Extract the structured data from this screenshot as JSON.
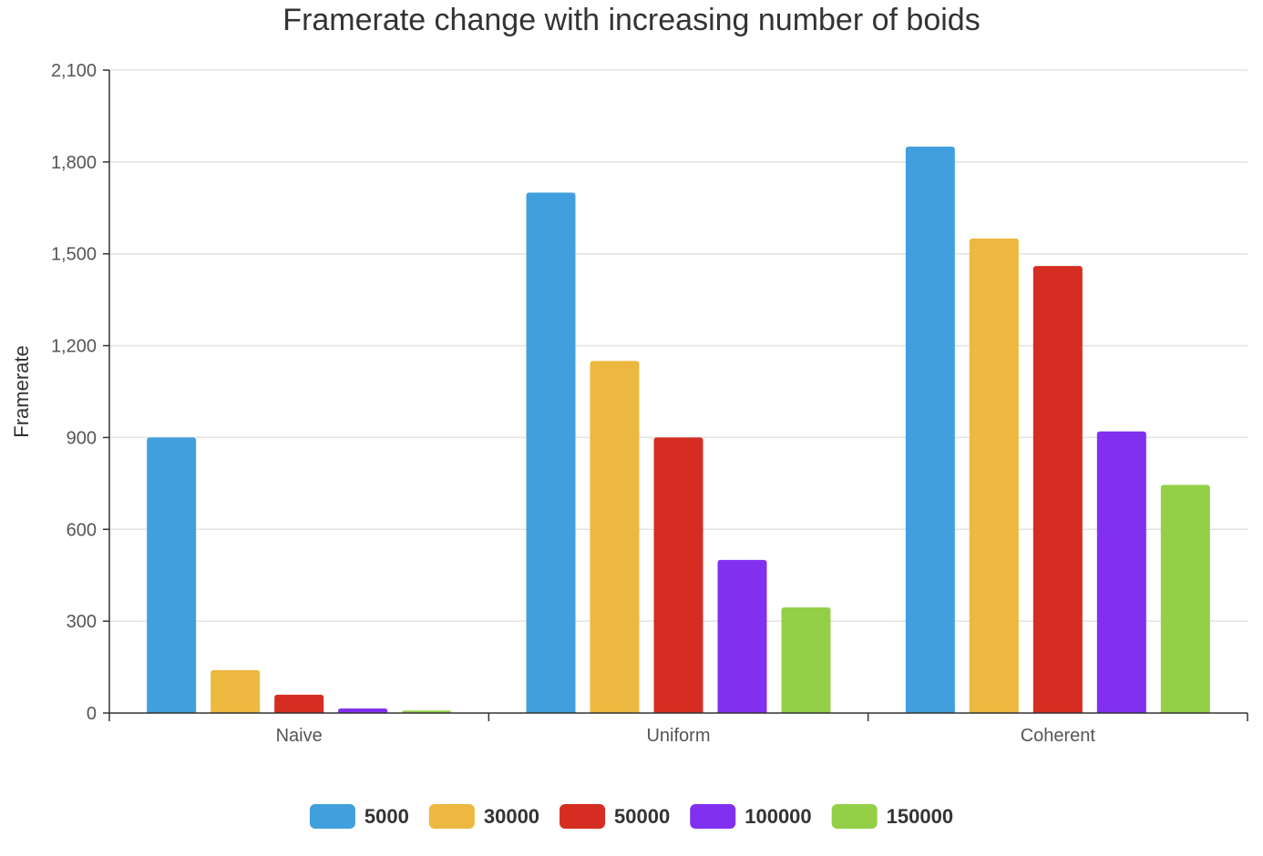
{
  "chart_data": {
    "type": "bar",
    "title": "Framerate change with increasing number of boids",
    "xlabel": "",
    "ylabel": "Framerate",
    "categories": [
      "Naive",
      "Uniform",
      "Coherent"
    ],
    "ylim": [
      0,
      2100
    ],
    "yticks": [
      0,
      300,
      600,
      900,
      1200,
      1500,
      1800,
      2100
    ],
    "ytick_labels": [
      "0",
      "300",
      "600",
      "900",
      "1,200",
      "1,500",
      "1,800",
      "2,100"
    ],
    "grid": true,
    "legend_position": "bottom",
    "series": [
      {
        "name": "5000",
        "color": "#429fdd",
        "values": [
          900,
          1700,
          1850
        ]
      },
      {
        "name": "30000",
        "color": "#ecb83f",
        "values": [
          140,
          1150,
          1550
        ]
      },
      {
        "name": "50000",
        "color": "#d52d21",
        "values": [
          60,
          900,
          1460
        ]
      },
      {
        "name": "100000",
        "color": "#8130f0",
        "values": [
          15,
          500,
          920
        ]
      },
      {
        "name": "150000",
        "color": "#93cf47",
        "values": [
          8,
          345,
          745
        ]
      }
    ]
  }
}
